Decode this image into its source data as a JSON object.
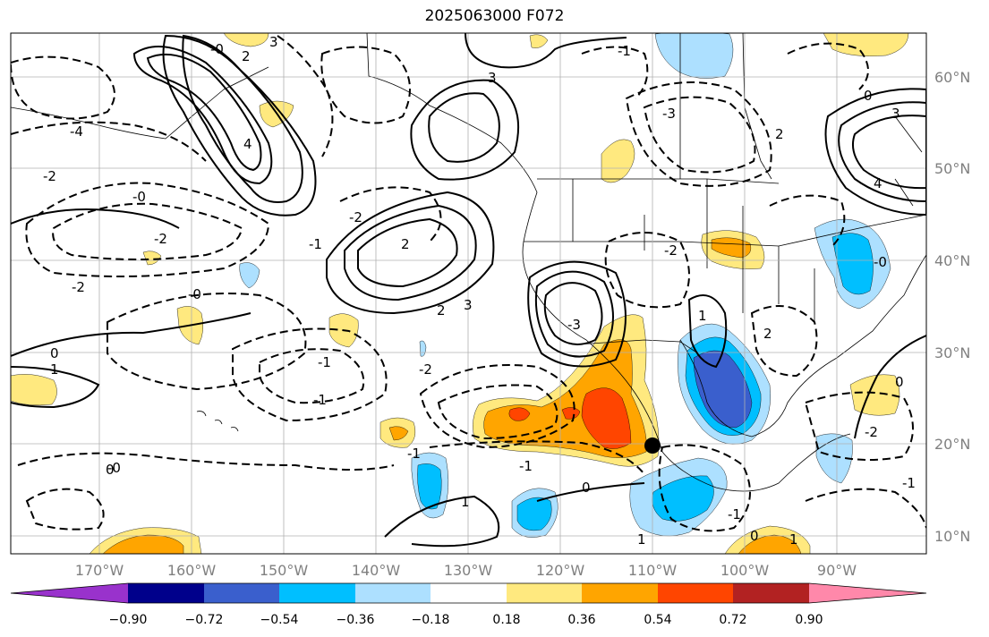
{
  "map": {
    "title": "2025063000 F072",
    "lon_ticks": [
      "170°W",
      "160°W",
      "150°W",
      "140°W",
      "130°W",
      "120°W",
      "110°W",
      "100°W",
      "90°W"
    ],
    "lat_ticks": [
      "60°N",
      "50°N",
      "40°N",
      "30°N",
      "20°N",
      "10°N"
    ],
    "marker": "storm-center-dot",
    "contour_labels": [
      {
        "text": "3"
      },
      {
        "text": "-0"
      },
      {
        "text": "2"
      },
      {
        "text": "-4"
      },
      {
        "text": "-2"
      },
      {
        "text": "-0"
      },
      {
        "text": "-2"
      },
      {
        "text": "-0"
      },
      {
        "text": "-1"
      },
      {
        "text": "0"
      },
      {
        "text": "1"
      },
      {
        "text": "-2"
      },
      {
        "text": "2"
      },
      {
        "text": "3"
      },
      {
        "text": "4"
      },
      {
        "text": "-3"
      },
      {
        "text": "-1"
      },
      {
        "text": "-2"
      },
      {
        "text": "-1"
      },
      {
        "text": "-0"
      },
      {
        "text": "1"
      },
      {
        "text": "0"
      },
      {
        "text": "-1"
      },
      {
        "text": "2"
      },
      {
        "text": "3"
      },
      {
        "text": "-2"
      },
      {
        "text": "-3"
      },
      {
        "text": "-1"
      },
      {
        "text": "0"
      },
      {
        "text": "1"
      },
      {
        "text": "-2"
      },
      {
        "text": "1"
      },
      {
        "text": "-1"
      },
      {
        "text": "0"
      },
      {
        "text": "2"
      },
      {
        "text": "-0"
      },
      {
        "text": "-1"
      },
      {
        "text": "3"
      },
      {
        "text": "0"
      },
      {
        "text": "0"
      },
      {
        "text": "1"
      },
      {
        "text": "-1"
      },
      {
        "text": "2"
      },
      {
        "text": "-2"
      },
      {
        "text": "4"
      }
    ]
  },
  "colorbar": {
    "tick_labels": [
      "−0.90",
      "−0.72",
      "−0.54",
      "−0.36",
      "−0.18",
      "0.18",
      "0.36",
      "0.54",
      "0.72",
      "0.90"
    ],
    "colors": [
      "#9932CC",
      "#00008B",
      "#3A5FCD",
      "#00BFFF",
      "#ADE0FF",
      "#FFFFFF",
      "#FFE97F",
      "#FFA500",
      "#FF4500",
      "#B22222",
      "#FF88AA"
    ]
  },
  "palette": {
    "light_blue": "#ADE0FF",
    "sky_blue": "#00BFFF",
    "medium_blue": "#3A5FCD",
    "light_yellow": "#FFE97F",
    "orange": "#FFA500",
    "red_orange": "#FF4500"
  }
}
